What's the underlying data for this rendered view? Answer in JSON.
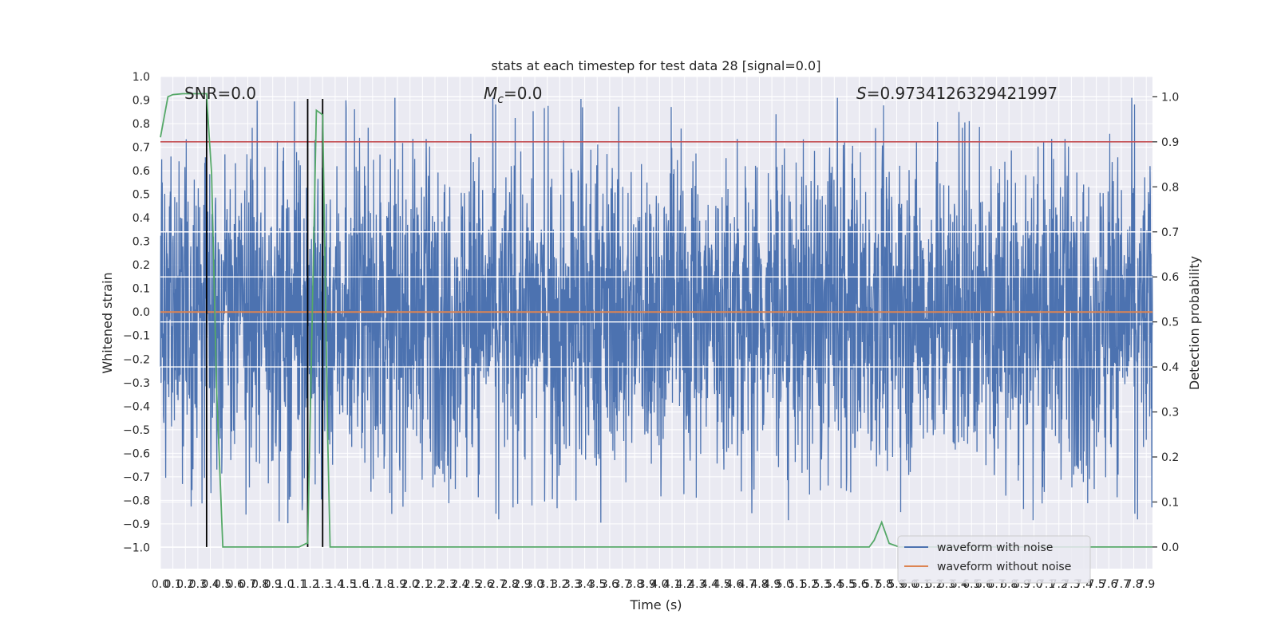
{
  "chart_data": {
    "type": "line",
    "title": "stats at each timestep for test data 28 [signal=0.0]",
    "xlabel": "Time (s)",
    "ylabel_left": "Whitened strain",
    "ylabel_right": "Detection probability",
    "xlim": [
      0.0,
      7.95
    ],
    "ylim_left": [
      -1.09,
      1.0
    ],
    "ylim_right": [
      -0.048,
      1.045
    ],
    "x_ticks": [
      "0.0",
      "0.1",
      "0.2",
      "0.3",
      "0.4",
      "0.5",
      "0.6",
      "0.7",
      "0.8",
      "0.9",
      "1.0",
      "1.1",
      "1.2",
      "1.3",
      "1.4",
      "1.5",
      "1.6",
      "1.7",
      "1.8",
      "1.9",
      "2.0",
      "2.1",
      "2.2",
      "2.3",
      "2.4",
      "2.5",
      "2.6",
      "2.7",
      "2.8",
      "2.9",
      "3.0",
      "3.1",
      "3.2",
      "3.3",
      "3.4",
      "3.5",
      "3.6",
      "3.7",
      "3.8",
      "3.9",
      "4.0",
      "4.1",
      "4.2",
      "4.3",
      "4.4",
      "4.5",
      "4.6",
      "4.7",
      "4.8",
      "4.9",
      "5.0",
      "5.1",
      "5.2",
      "5.3",
      "5.4",
      "5.5",
      "5.6",
      "5.7",
      "5.8",
      "5.9",
      "6.0",
      "6.1",
      "6.2",
      "6.3",
      "6.4",
      "6.5",
      "6.6",
      "6.7",
      "6.8",
      "6.9",
      "7.0",
      "7.1",
      "7.2",
      "7.3",
      "7.4",
      "7.5",
      "7.6",
      "7.7",
      "7.8",
      "7.9"
    ],
    "y_ticks_left": [
      "1.0",
      "0.9",
      "0.8",
      "0.7",
      "0.6",
      "0.5",
      "0.4",
      "0.3",
      "0.2",
      "0.1",
      "0.0",
      "−0.1",
      "−0.2",
      "−0.3",
      "−0.4",
      "−0.5",
      "−0.6",
      "−0.7",
      "−0.8",
      "−0.9",
      "−1.0"
    ],
    "y_ticks_right": [
      "1.0",
      "0.9",
      "0.8",
      "0.7",
      "0.6",
      "0.5",
      "0.4",
      "0.3",
      "0.2",
      "0.1",
      "0.0"
    ],
    "annotations": {
      "snr": "SNR=0.0",
      "mc_symbol": "M",
      "mc_subscript": "c",
      "mc_value": "=0.0",
      "s_symbol": "S",
      "s_value": "=0.9734126329421997"
    },
    "threshold": {
      "axis": "right",
      "value": 0.9,
      "color": "#c44e52"
    },
    "vertical_markers_x": [
      0.37,
      1.18,
      1.3
    ],
    "series": [
      {
        "name": "waveform with noise",
        "axis": "left",
        "color": "#4c72b0",
        "style": "dense noise, approx ±0.45 with spikes to ±1.0"
      },
      {
        "name": "waveform without noise",
        "axis": "left",
        "color": "#dd8452",
        "x": [
          0.0,
          7.95
        ],
        "y": [
          0.0,
          0.0
        ]
      },
      {
        "name": "",
        "axis": "right",
        "color": "#55a868",
        "x": [
          0.0,
          0.06,
          0.1,
          0.18,
          0.25,
          0.3,
          0.37,
          0.38,
          0.41,
          0.45,
          0.5,
          0.6,
          1.0,
          1.11,
          1.17,
          1.18,
          1.25,
          1.3,
          1.34,
          1.36,
          2.0,
          4.0,
          5.5,
          5.68,
          5.72,
          5.78,
          5.84,
          5.92,
          6.2,
          7.95
        ],
        "y": [
          0.91,
          1.0,
          1.005,
          1.007,
          1.007,
          1.007,
          1.007,
          0.96,
          0.83,
          0.35,
          0.0,
          0.0,
          0.0,
          0.0,
          0.008,
          0.008,
          0.97,
          0.96,
          0.25,
          0.0,
          0.0,
          0.0,
          0.0,
          0.0,
          0.015,
          0.055,
          0.008,
          0.0,
          0.0,
          0.0
        ]
      }
    ],
    "legend": {
      "position": "lower right",
      "entries": [
        {
          "label": "waveform with noise",
          "color": "#4c72b0"
        },
        {
          "label": "waveform without noise",
          "color": "#dd8452"
        }
      ]
    },
    "grid": true,
    "colors": {
      "background": "#eaeaf2",
      "grid": "#ffffff",
      "marker": "#000000"
    }
  }
}
